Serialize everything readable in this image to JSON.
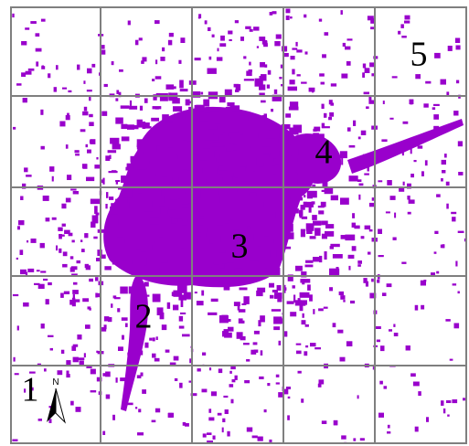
{
  "zones": [
    {
      "label": "1"
    },
    {
      "label": "2"
    },
    {
      "label": "3"
    },
    {
      "label": "4"
    },
    {
      "label": "5"
    }
  ],
  "north_arrow": {
    "label": "N"
  }
}
